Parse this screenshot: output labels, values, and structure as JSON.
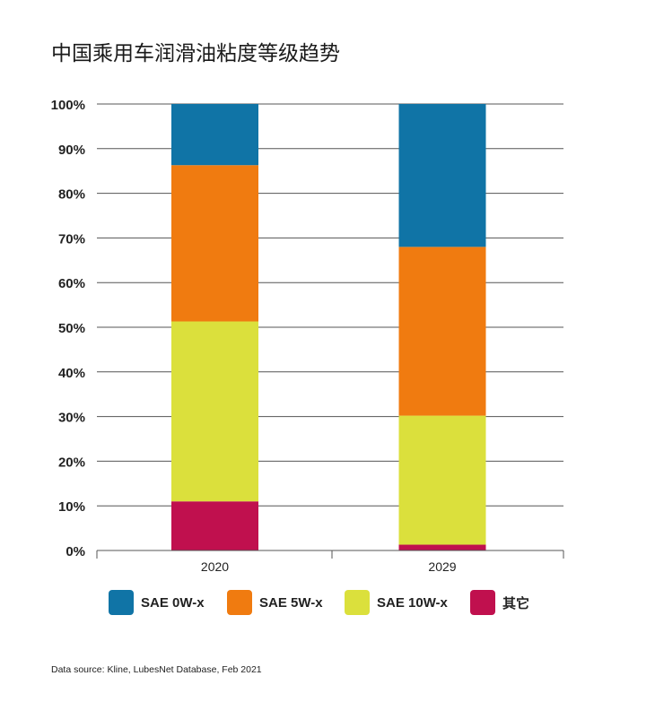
{
  "title": "中国乘用车润滑油粘度等级趋势",
  "source_note": "Data source: Kline, LubesNet Database, Feb 2021",
  "colors": {
    "SAE 0W-x": "#1074a6",
    "SAE 5W-x": "#f07b10",
    "SAE 10W-x": "#dbe03c",
    "其它": "#c0104e"
  },
  "chart_data": {
    "type": "bar",
    "stacked": true,
    "title": "中国乘用车润滑油粘度等级趋势",
    "categories": [
      "2020",
      "2029"
    ],
    "series": [
      {
        "name": "其它",
        "values": [
          11,
          1.3
        ]
      },
      {
        "name": "SAE 10W-x",
        "values": [
          40.3,
          28.9
        ]
      },
      {
        "name": "SAE 5W-x",
        "values": [
          35,
          37.8
        ]
      },
      {
        "name": "SAE 0W-x",
        "values": [
          13.7,
          32
        ]
      }
    ],
    "ylim": [
      0,
      100
    ],
    "yticks": [
      "0%",
      "10%",
      "20%",
      "30%",
      "40%",
      "50%",
      "60%",
      "70%",
      "80%",
      "90%",
      "100%"
    ],
    "grid": true,
    "legend_position": "bottom",
    "legend": [
      "SAE 0W-x",
      "SAE 5W-x",
      "SAE 10W-x",
      "其它"
    ]
  }
}
